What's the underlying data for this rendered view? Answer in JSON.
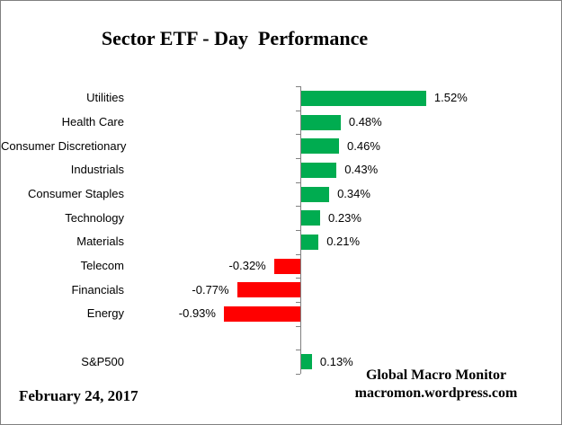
{
  "title": "Sector ETF - Day  Performance",
  "footer": {
    "date": "February 24, 2017",
    "watermark_line1": "Global Macro Monitor",
    "watermark_line2": "macromon.wordpress.com"
  },
  "chart_data": {
    "type": "bar",
    "orientation": "horizontal",
    "title": "Sector ETF - Day  Performance",
    "categories": [
      "Utilities",
      "Health Care",
      "Consumer Discretionary",
      "Industrials",
      "Consumer Staples",
      "Technology",
      "Materials",
      "Telecom",
      "Financials",
      "Energy",
      "",
      "S&P500"
    ],
    "values": [
      1.52,
      0.48,
      0.46,
      0.43,
      0.34,
      0.23,
      0.21,
      -0.32,
      -0.77,
      -0.93,
      null,
      0.13
    ],
    "data_labels": [
      "1.52%",
      "0.48%",
      "0.46%",
      "0.43%",
      "0.34%",
      "0.23%",
      "0.21%",
      "-0.32%",
      "-0.77%",
      "-0.93%",
      "",
      "0.13%"
    ],
    "positive_color": "#00AC50",
    "negative_color": "#FF0000",
    "axis_color": "#808080",
    "xlim_hint": [
      -2.1,
      3.1
    ],
    "grid": false,
    "legend": false,
    "data_labels_shown": true
  }
}
